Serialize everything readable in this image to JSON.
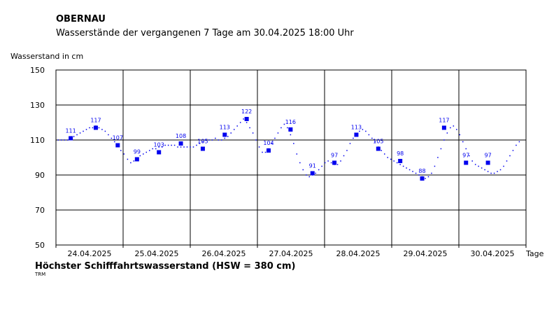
{
  "header": {
    "station": "OBERNAU",
    "subtitle": "Wasserstände der vergangenen 7 Tage am 30.04.2025 18:00 Uhr",
    "ylabel": "Wasserstand in cm"
  },
  "footer": {
    "hsw": "Höchster Schifffahrtswasserstand (HSW = 380 cm)",
    "trm": "TRM"
  },
  "colors": {
    "series": "#0000ee",
    "grid": "#000000",
    "label": "#0000ee"
  },
  "chart_data": {
    "type": "scatter",
    "title": "Wasserstände der vergangenen 7 Tage am 30.04.2025 18:00 Uhr",
    "ylabel": "Wasserstand in cm",
    "xlabel": "Tage",
    "ylim": [
      50,
      150
    ],
    "yticks": [
      50,
      70,
      90,
      110,
      130,
      150
    ],
    "xlim_days": [
      0,
      7
    ],
    "days": [
      "24.04.2025",
      "25.04.2025",
      "26.04.2025",
      "27.04.2025",
      "28.04.2025",
      "29.04.2025",
      "30.04.2025"
    ],
    "grid": true,
    "series": [
      {
        "values": [
          [
            0.05,
            110
          ],
          [
            0.12,
            110
          ],
          [
            0.19,
            110
          ],
          [
            0.26,
            110
          ],
          [
            0.33,
            111
          ],
          [
            0.4,
            112
          ],
          [
            0.47,
            113
          ],
          [
            0.54,
            114
          ],
          [
            0.61,
            115
          ],
          [
            0.68,
            116
          ],
          [
            0.75,
            117
          ],
          [
            0.82,
            117
          ],
          [
            0.89,
            118
          ],
          [
            0.96,
            117
          ],
          [
            1.03,
            116
          ],
          [
            1.1,
            115
          ],
          [
            1.17,
            113
          ],
          [
            1.24,
            111
          ],
          [
            1.31,
            109
          ],
          [
            1.38,
            107
          ],
          [
            1.45,
            104
          ],
          [
            1.52,
            102
          ],
          [
            1.6,
            99
          ],
          [
            1.67,
            97
          ],
          [
            1.74,
            98
          ],
          [
            1.81,
            99
          ],
          [
            1.88,
            101
          ],
          [
            1.95,
            102
          ],
          [
            2.02,
            103
          ],
          [
            2.09,
            104
          ],
          [
            2.16,
            105
          ],
          [
            2.23,
            105
          ],
          [
            2.3,
            106
          ],
          [
            2.37,
            106
          ],
          [
            2.44,
            107
          ],
          [
            2.51,
            107
          ],
          [
            2.58,
            107
          ],
          [
            2.65,
            107
          ],
          [
            2.72,
            106
          ],
          [
            2.79,
            106
          ],
          [
            2.86,
            106
          ],
          [
            2.93,
            106
          ],
          [
            3.0,
            106
          ],
          [
            3.07,
            106
          ],
          [
            3.14,
            107
          ],
          [
            3.21,
            108
          ],
          [
            3.28,
            109
          ],
          [
            3.35,
            110
          ],
          [
            3.42,
            110
          ],
          [
            3.49,
            110
          ],
          [
            3.56,
            111
          ],
          [
            3.63,
            110
          ],
          [
            3.7,
            110
          ],
          [
            3.77,
            111
          ],
          [
            3.84,
            112
          ],
          [
            3.91,
            114
          ],
          [
            3.98,
            116
          ],
          [
            4.05,
            118
          ],
          [
            4.12,
            120
          ],
          [
            4.19,
            122
          ],
          [
            4.26,
            120
          ],
          [
            4.33,
            117
          ],
          [
            4.4,
            114
          ],
          [
            4.47,
            110
          ],
          [
            4.54,
            106
          ],
          [
            4.61,
            103
          ],
          [
            4.68,
            103
          ],
          [
            4.75,
            105
          ],
          [
            4.82,
            108
          ],
          [
            4.89,
            111
          ],
          [
            4.96,
            114
          ],
          [
            5.03,
            117
          ],
          [
            5.1,
            119
          ],
          [
            5.17,
            117
          ],
          [
            5.24,
            113
          ],
          [
            5.31,
            108
          ],
          [
            5.38,
            102
          ],
          [
            5.45,
            97
          ],
          [
            5.52,
            93
          ],
          [
            5.59,
            90
          ],
          [
            5.66,
            89
          ],
          [
            5.73,
            90
          ],
          [
            5.8,
            91
          ],
          [
            5.87,
            93
          ],
          [
            5.94,
            95
          ],
          [
            6.01,
            97
          ],
          [
            6.08,
            98
          ],
          [
            6.15,
            97
          ],
          [
            6.22,
            96
          ],
          [
            6.29,
            96
          ],
          [
            6.36,
            98
          ],
          [
            6.43,
            101
          ],
          [
            6.5,
            104
          ],
          [
            6.57,
            108
          ],
          [
            6.64,
            111
          ],
          [
            6.71,
            113
          ],
          [
            6.78,
            115
          ],
          [
            6.85,
            116
          ],
          [
            6.92,
            115
          ],
          [
            6.99,
            113
          ],
          [
            7.06,
            111
          ],
          [
            7.13,
            109
          ],
          [
            7.2,
            106
          ],
          [
            7.27,
            104
          ],
          [
            7.34,
            102
          ],
          [
            7.41,
            100
          ],
          [
            7.48,
            99
          ],
          [
            7.55,
            98
          ],
          [
            7.62,
            97
          ],
          [
            7.69,
            96
          ],
          [
            7.76,
            95
          ],
          [
            7.83,
            94
          ],
          [
            7.9,
            93
          ],
          [
            7.97,
            92
          ],
          [
            8.04,
            91
          ],
          [
            8.11,
            90
          ],
          [
            8.18,
            89
          ],
          [
            8.25,
            88
          ],
          [
            8.32,
            89
          ],
          [
            8.39,
            91
          ],
          [
            8.46,
            95
          ],
          [
            8.53,
            100
          ],
          [
            8.6,
            105
          ],
          [
            8.67,
            110
          ],
          [
            8.74,
            114
          ],
          [
            8.81,
            117
          ],
          [
            8.88,
            118
          ],
          [
            8.95,
            116
          ],
          [
            9.02,
            113
          ],
          [
            9.09,
            109
          ],
          [
            9.16,
            105
          ],
          [
            9.23,
            101
          ],
          [
            9.3,
            98
          ],
          [
            9.37,
            96
          ],
          [
            9.44,
            95
          ],
          [
            9.51,
            94
          ],
          [
            9.58,
            93
          ],
          [
            9.65,
            92
          ],
          [
            9.72,
            91
          ],
          [
            9.79,
            91
          ],
          [
            9.86,
            92
          ],
          [
            9.93,
            93
          ],
          [
            10.0,
            95
          ],
          [
            10.07,
            98
          ],
          [
            10.14,
            101
          ],
          [
            10.21,
            104
          ],
          [
            10.28,
            107
          ],
          [
            10.35,
            109
          ]
        ]
      }
    ],
    "markers": [
      {
        "x": 0.33,
        "y": 111,
        "label": "111"
      },
      {
        "x": 0.89,
        "y": 117,
        "label": "117"
      },
      {
        "x": 1.38,
        "y": 107,
        "label": "107"
      },
      {
        "x": 1.81,
        "y": 99,
        "label": "99"
      },
      {
        "x": 2.3,
        "y": 103,
        "label": "103"
      },
      {
        "x": 2.79,
        "y": 108,
        "label": "108"
      },
      {
        "x": 3.28,
        "y": 105,
        "label": "105"
      },
      {
        "x": 3.77,
        "y": 113,
        "label": "113"
      },
      {
        "x": 4.26,
        "y": 122,
        "label": "122"
      },
      {
        "x": 4.75,
        "y": 104,
        "label": "104"
      },
      {
        "x": 5.24,
        "y": 116,
        "label": "116"
      },
      {
        "x": 5.73,
        "y": 91,
        "label": "91"
      },
      {
        "x": 6.22,
        "y": 97,
        "label": "97"
      },
      {
        "x": 6.71,
        "y": 113,
        "label": "113"
      },
      {
        "x": 7.2,
        "y": 105,
        "label": "105"
      },
      {
        "x": 7.69,
        "y": 98,
        "label": "98"
      },
      {
        "x": 8.18,
        "y": 88,
        "label": "88"
      },
      {
        "x": 8.67,
        "y": 117,
        "label": "117"
      },
      {
        "x": 9.16,
        "y": 97,
        "label": "97"
      },
      {
        "x": 9.65,
        "y": 97,
        "label": "97"
      }
    ]
  }
}
